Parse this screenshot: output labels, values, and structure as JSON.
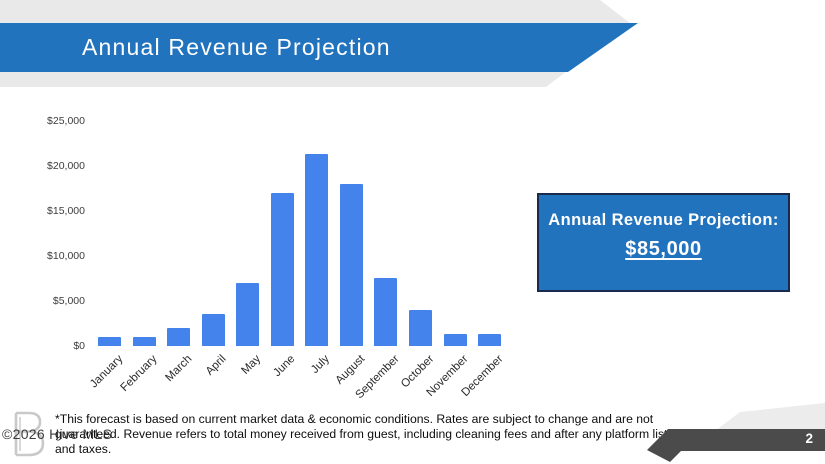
{
  "header": {
    "title": "Annual Revenue Projection"
  },
  "chart_data": {
    "type": "bar",
    "categories": [
      "January",
      "February",
      "March",
      "April",
      "May",
      "June",
      "July",
      "August",
      "September",
      "October",
      "November",
      "December"
    ],
    "values": [
      1000,
      1000,
      2000,
      3500,
      7000,
      17000,
      21300,
      18000,
      7500,
      4000,
      1350,
      1350
    ],
    "title": "",
    "xlabel": "",
    "ylabel": "",
    "ylim": [
      0,
      25000
    ],
    "ytick_step": 5000,
    "ytick_labels": [
      "$0",
      "$5,000",
      "$10,000",
      "$15,000",
      "$20,000",
      "$25,000"
    ],
    "bar_color": "#4583ec",
    "grid": false,
    "legend": false,
    "annual_total": 85000
  },
  "callout": {
    "heading": "Annual Revenue Projection:",
    "amount": "$85,000"
  },
  "footnote": {
    "lines": [
      "*This forecast is based on current market data & economic conditions. Rates are subject to change and are not",
      "guaranteed. Revenue refers to total money received from guest, including cleaning fees and after any platform listing fees",
      "and taxes."
    ]
  },
  "watermark": {
    "text": "©2026 Hive MLS",
    "logo": "hive-mls-logo"
  },
  "page": {
    "number": "2"
  },
  "colors": {
    "accent_blue": "#2273bd",
    "bar_blue": "#4583ec",
    "band_gray": "#e9e9e9",
    "ribbon_dark": "#4b4b4b",
    "callout_border": "#1b2a4c"
  }
}
